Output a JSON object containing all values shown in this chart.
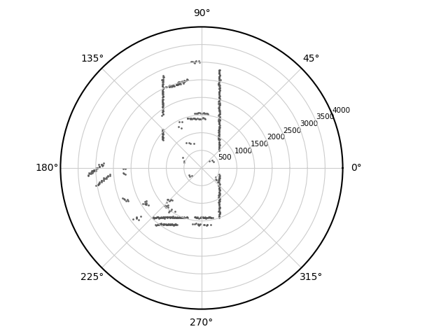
{
  "title": "",
  "background_color": "#ffffff",
  "r_max": 4000,
  "r_ticks": [
    500,
    1000,
    1500,
    2000,
    2500,
    3000,
    3500,
    4000
  ],
  "theta_ticks_deg": [
    0,
    45,
    90,
    135,
    180,
    225,
    270,
    315
  ],
  "theta_labels": [
    "0°",
    "45°",
    "90°",
    "135°",
    "180°",
    "225°",
    "270°",
    "315°"
  ],
  "point_color": "#555555",
  "point_size": 4,
  "point_alpha": 0.9,
  "grid_color": "#cccccc",
  "spine_color": "#000000",
  "spine_linewidth": 1.5,
  "fig_width": 6.4,
  "fig_height": 4.8
}
